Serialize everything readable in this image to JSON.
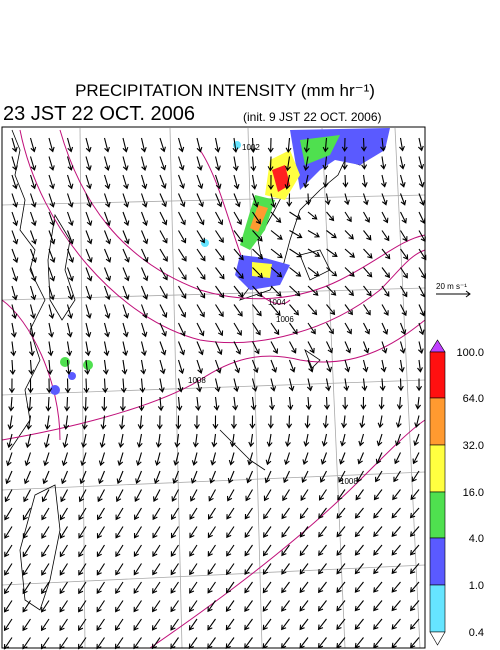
{
  "header": {
    "title": "PRECIPITATION INTENSITY (mm hr⁻¹)",
    "valid_time": "23 JST 22 OCT. 2006",
    "init_time": "(init. 9 JST 22 OCT. 2006)"
  },
  "wind_legend": {
    "label": "20 m s⁻¹"
  },
  "colorbar": {
    "labels": [
      "100.0",
      "64.0",
      "32.0",
      "16.0",
      "4.0",
      "1.0",
      "0.4"
    ]
  },
  "isobars": {
    "labels": [
      "1002",
      "1004",
      "1006",
      "1008",
      "1008"
    ]
  }
}
